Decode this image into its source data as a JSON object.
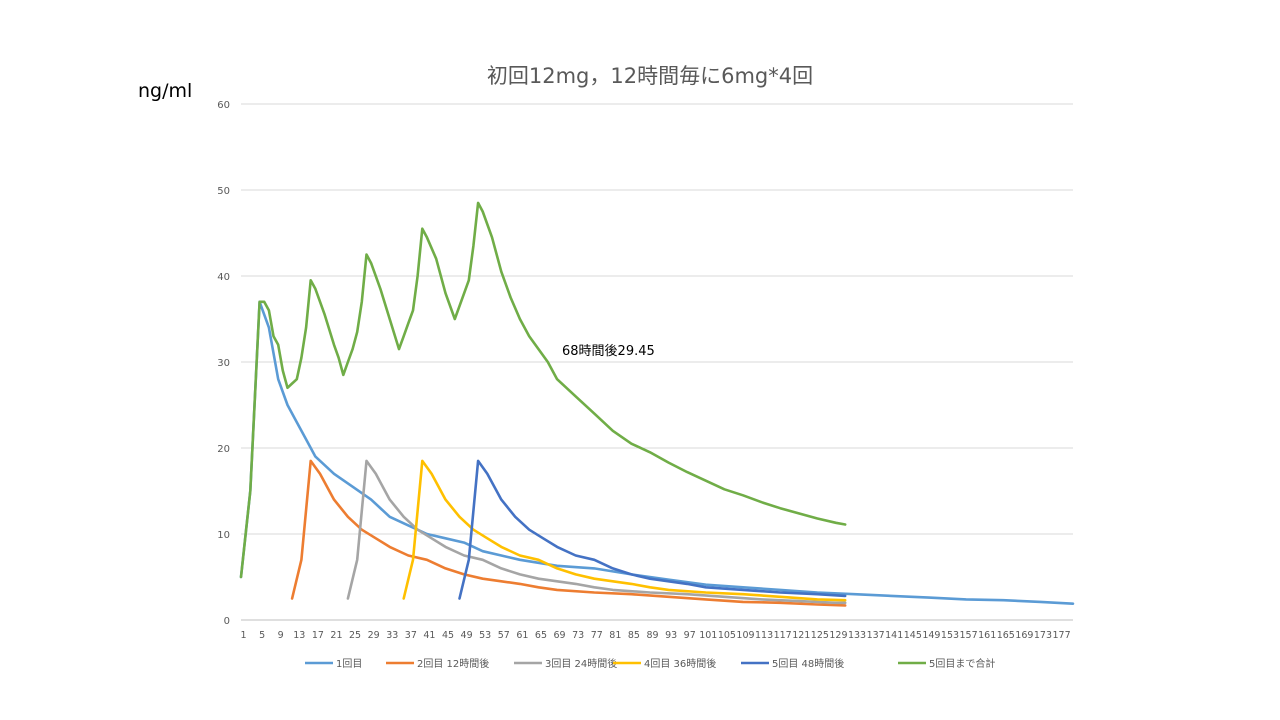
{
  "chart_data": {
    "type": "line",
    "title": "初回12mg，12時間毎に6mg*4回",
    "unit_label": "ng/ml",
    "ylim": [
      0,
      60
    ],
    "yticks": [
      0,
      10,
      20,
      30,
      40,
      50,
      60
    ],
    "xlim": [
      1,
      180
    ],
    "xticks": [
      1,
      5,
      9,
      13,
      17,
      21,
      25,
      29,
      33,
      37,
      41,
      45,
      49,
      53,
      57,
      61,
      65,
      69,
      73,
      77,
      81,
      85,
      89,
      93,
      97,
      101,
      105,
      109,
      113,
      117,
      121,
      125,
      129,
      133,
      137,
      141,
      145,
      149,
      153,
      157,
      161,
      165,
      169,
      173,
      177
    ],
    "grid": true,
    "legend_position": "bottom",
    "annotation": {
      "text": "68時間後29.45",
      "x": 69,
      "y": 29.45
    },
    "series": [
      {
        "name": "1回目",
        "color": "#5B9BD5",
        "points": [
          [
            1,
            5
          ],
          [
            3,
            15
          ],
          [
            5,
            37
          ],
          [
            7,
            34
          ],
          [
            9,
            28
          ],
          [
            11,
            25
          ],
          [
            13,
            23
          ],
          [
            15,
            21
          ],
          [
            17,
            19
          ],
          [
            21,
            17
          ],
          [
            25,
            15.5
          ],
          [
            29,
            14
          ],
          [
            33,
            12
          ],
          [
            37,
            11
          ],
          [
            41,
            10
          ],
          [
            45,
            9.5
          ],
          [
            49,
            9
          ],
          [
            53,
            8
          ],
          [
            57,
            7.5
          ],
          [
            61,
            7
          ],
          [
            69,
            6.3
          ],
          [
            77,
            6
          ],
          [
            85,
            5.3
          ],
          [
            93,
            4.7
          ],
          [
            101,
            4.1
          ],
          [
            109,
            3.8
          ],
          [
            117,
            3.5
          ],
          [
            125,
            3.2
          ],
          [
            133,
            3
          ],
          [
            141,
            2.8
          ],
          [
            149,
            2.6
          ],
          [
            157,
            2.4
          ],
          [
            165,
            2.3
          ],
          [
            173,
            2.1
          ],
          [
            180,
            1.9
          ]
        ]
      },
      {
        "name": "2回目 12時間後",
        "color": "#ED7D31",
        "points": [
          [
            12,
            2.5
          ],
          [
            14,
            7
          ],
          [
            16,
            18.5
          ],
          [
            18,
            17
          ],
          [
            21,
            14
          ],
          [
            24,
            12
          ],
          [
            27,
            10.5
          ],
          [
            30,
            9.5
          ],
          [
            33,
            8.5
          ],
          [
            37,
            7.5
          ],
          [
            41,
            7
          ],
          [
            45,
            6
          ],
          [
            49,
            5.3
          ],
          [
            53,
            4.8
          ],
          [
            57,
            4.5
          ],
          [
            61,
            4.2
          ],
          [
            65,
            3.8
          ],
          [
            69,
            3.5
          ],
          [
            77,
            3.2
          ],
          [
            85,
            3
          ],
          [
            93,
            2.7
          ],
          [
            101,
            2.4
          ],
          [
            109,
            2.1
          ],
          [
            117,
            2
          ],
          [
            125,
            1.8
          ],
          [
            131,
            1.7
          ]
        ]
      },
      {
        "name": "3回目 24時間後",
        "color": "#A5A5A5",
        "points": [
          [
            24,
            2.5
          ],
          [
            26,
            7
          ],
          [
            28,
            18.5
          ],
          [
            30,
            17
          ],
          [
            33,
            14
          ],
          [
            36,
            12
          ],
          [
            39,
            10.5
          ],
          [
            42,
            9.5
          ],
          [
            45,
            8.5
          ],
          [
            49,
            7.5
          ],
          [
            53,
            7
          ],
          [
            57,
            6
          ],
          [
            61,
            5.3
          ],
          [
            65,
            4.8
          ],
          [
            69,
            4.5
          ],
          [
            73,
            4.2
          ],
          [
            77,
            3.8
          ],
          [
            81,
            3.5
          ],
          [
            89,
            3.2
          ],
          [
            97,
            3
          ],
          [
            105,
            2.7
          ],
          [
            113,
            2.4
          ],
          [
            121,
            2.2
          ],
          [
            129,
            2
          ],
          [
            131,
            2
          ]
        ]
      },
      {
        "name": "4回目 36時間後",
        "color": "#FFC000",
        "points": [
          [
            36,
            2.5
          ],
          [
            38,
            7
          ],
          [
            40,
            18.5
          ],
          [
            42,
            17
          ],
          [
            45,
            14
          ],
          [
            48,
            12
          ],
          [
            51,
            10.5
          ],
          [
            54,
            9.5
          ],
          [
            57,
            8.5
          ],
          [
            61,
            7.5
          ],
          [
            65,
            7
          ],
          [
            69,
            6
          ],
          [
            73,
            5.3
          ],
          [
            77,
            4.8
          ],
          [
            81,
            4.5
          ],
          [
            85,
            4.2
          ],
          [
            89,
            3.8
          ],
          [
            93,
            3.5
          ],
          [
            101,
            3.2
          ],
          [
            109,
            3
          ],
          [
            117,
            2.7
          ],
          [
            125,
            2.4
          ],
          [
            131,
            2.3
          ]
        ]
      },
      {
        "name": "5回目 48時間後",
        "color": "#4472C4",
        "points": [
          [
            48,
            2.5
          ],
          [
            50,
            7
          ],
          [
            52,
            18.5
          ],
          [
            54,
            17
          ],
          [
            57,
            14
          ],
          [
            60,
            12
          ],
          [
            63,
            10.5
          ],
          [
            66,
            9.5
          ],
          [
            69,
            8.5
          ],
          [
            73,
            7.5
          ],
          [
            77,
            7
          ],
          [
            81,
            6
          ],
          [
            85,
            5.3
          ],
          [
            89,
            4.8
          ],
          [
            93,
            4.5
          ],
          [
            97,
            4.2
          ],
          [
            101,
            3.8
          ],
          [
            109,
            3.5
          ],
          [
            117,
            3.2
          ],
          [
            125,
            3
          ],
          [
            131,
            2.8
          ]
        ]
      },
      {
        "name": "5回目まで合計",
        "color": "#70AD47",
        "points": [
          [
            1,
            5
          ],
          [
            3,
            15
          ],
          [
            5,
            37
          ],
          [
            6,
            37
          ],
          [
            7,
            36
          ],
          [
            8,
            33
          ],
          [
            9,
            32
          ],
          [
            10,
            29
          ],
          [
            11,
            27
          ],
          [
            12,
            27.5
          ],
          [
            13,
            28
          ],
          [
            14,
            30.5
          ],
          [
            15,
            34
          ],
          [
            16,
            39.5
          ],
          [
            17,
            38.5
          ],
          [
            19,
            35.5
          ],
          [
            21,
            32
          ],
          [
            22,
            30.5
          ],
          [
            23,
            28.5
          ],
          [
            24,
            30
          ],
          [
            25,
            31.5
          ],
          [
            26,
            33.5
          ],
          [
            27,
            37
          ],
          [
            28,
            42.5
          ],
          [
            29,
            41.5
          ],
          [
            31,
            38.5
          ],
          [
            33,
            35
          ],
          [
            35,
            31.5
          ],
          [
            36,
            33
          ],
          [
            37,
            34.5
          ],
          [
            38,
            36
          ],
          [
            39,
            40
          ],
          [
            40,
            45.5
          ],
          [
            41,
            44.5
          ],
          [
            43,
            42
          ],
          [
            45,
            38
          ],
          [
            47,
            35
          ],
          [
            48,
            36.5
          ],
          [
            50,
            39.5
          ],
          [
            51,
            43.5
          ],
          [
            52,
            48.5
          ],
          [
            53,
            47.5
          ],
          [
            55,
            44.5
          ],
          [
            57,
            40.5
          ],
          [
            59,
            37.5
          ],
          [
            61,
            35
          ],
          [
            63,
            33
          ],
          [
            65,
            31.5
          ],
          [
            67,
            30
          ],
          [
            69,
            28
          ],
          [
            71,
            27
          ],
          [
            73,
            26
          ],
          [
            77,
            24
          ],
          [
            81,
            22
          ],
          [
            85,
            20.5
          ],
          [
            89,
            19.5
          ],
          [
            93,
            18.3
          ],
          [
            97,
            17.2
          ],
          [
            101,
            16.2
          ],
          [
            105,
            15.2
          ],
          [
            109,
            14.5
          ],
          [
            113,
            13.7
          ],
          [
            117,
            13
          ],
          [
            121,
            12.4
          ],
          [
            125,
            11.8
          ],
          [
            129,
            11.3
          ],
          [
            131,
            11.1
          ]
        ]
      }
    ]
  }
}
